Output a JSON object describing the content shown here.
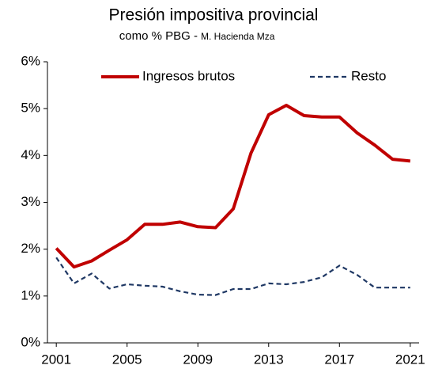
{
  "chart_data": {
    "type": "line",
    "title": "Presión impositiva provincial",
    "subtitle": "como % PBG -",
    "source": "M. Hacienda Mza",
    "x": [
      2001,
      2002,
      2003,
      2004,
      2005,
      2006,
      2007,
      2008,
      2009,
      2010,
      2011,
      2012,
      2013,
      2014,
      2015,
      2016,
      2017,
      2018,
      2019,
      2020,
      2021
    ],
    "series": [
      {
        "name": "Ingresos brutos",
        "color": "#c00000",
        "dash": "solid",
        "values": [
          2.02,
          1.62,
          1.75,
          1.98,
          2.2,
          2.53,
          2.53,
          2.58,
          2.48,
          2.46,
          2.86,
          4.05,
          4.87,
          5.07,
          4.85,
          4.82,
          4.82,
          4.48,
          4.22,
          3.92,
          3.88
        ]
      },
      {
        "name": "Resto",
        "color": "#1f3864",
        "dash": "dashed",
        "values": [
          1.82,
          1.27,
          1.48,
          1.16,
          1.25,
          1.22,
          1.2,
          1.1,
          1.03,
          1.02,
          1.15,
          1.15,
          1.27,
          1.25,
          1.3,
          1.4,
          1.65,
          1.45,
          1.18,
          1.18,
          1.18
        ]
      }
    ],
    "xlim": [
      2000.5,
      2021.5
    ],
    "xticks": [
      2001,
      2005,
      2009,
      2013,
      2017,
      2021
    ],
    "ylim": [
      0,
      6
    ],
    "yticks": [
      {
        "value": 0,
        "label": "0%"
      },
      {
        "value": 1,
        "label": "1%"
      },
      {
        "value": 2,
        "label": "2%"
      },
      {
        "value": 3,
        "label": "3%"
      },
      {
        "value": 4,
        "label": "4%"
      },
      {
        "value": 5,
        "label": "5%"
      },
      {
        "value": 6,
        "label": "6%"
      }
    ],
    "grid": false,
    "legend": "top"
  }
}
